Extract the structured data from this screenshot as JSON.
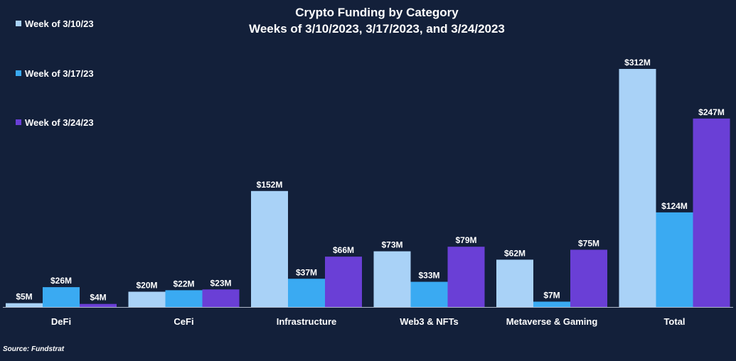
{
  "chart_data": {
    "type": "bar",
    "title": "Crypto Funding by Category",
    "subtitle": "Weeks of 3/10/2023, 3/17/2023, and 3/24/2023",
    "categories": [
      "DeFi",
      "CeFi",
      "Infrastructure",
      "Web3 & NFTs",
      "Metaverse & Gaming",
      "Total"
    ],
    "series": [
      {
        "name": "Week of 3/10/23",
        "color": "#a9d2f7",
        "values": [
          5,
          20,
          152,
          73,
          62,
          312
        ],
        "labels": [
          "$5M",
          "$20M",
          "$152M",
          "$73M",
          "$62M",
          "$312M"
        ]
      },
      {
        "name": "Week of 3/17/23",
        "color": "#3aaaf2",
        "values": [
          26,
          22,
          37,
          33,
          7,
          124
        ],
        "labels": [
          "$26M",
          "$22M",
          "$37M",
          "$33M",
          "$7M",
          "$124M"
        ]
      },
      {
        "name": "Week of 3/24/23",
        "color": "#6a3fd6",
        "values": [
          4,
          23,
          66,
          79,
          75,
          247
        ],
        "labels": [
          "$4M",
          "$23M",
          "$66M",
          "$79M",
          "$75M",
          "$247M"
        ]
      }
    ],
    "xlabel": "",
    "ylabel": "",
    "ylim": [
      0,
      312
    ],
    "legend_position": "top-left",
    "grid": false
  },
  "source": "Source: Fundstrat"
}
